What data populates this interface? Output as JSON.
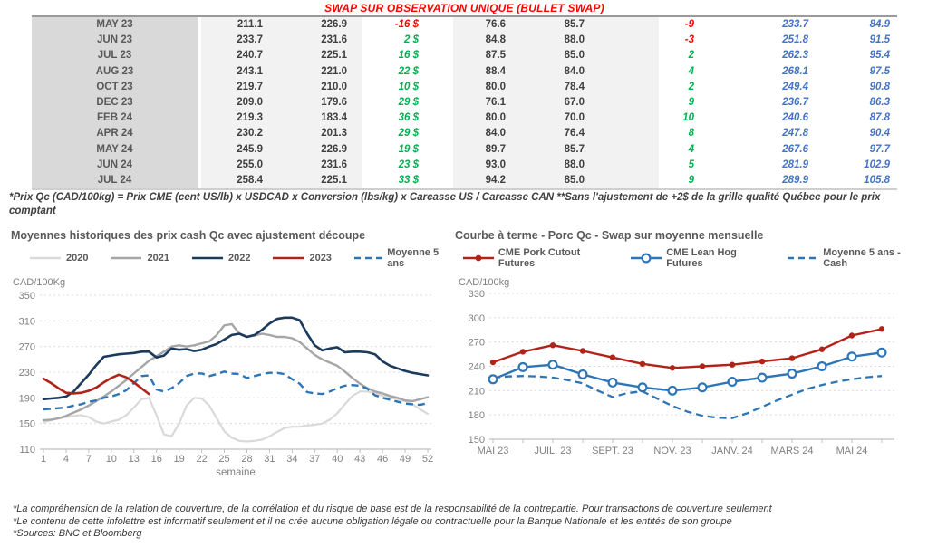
{
  "table": {
    "title": "SWAP SUR OBSERVATION UNIQUE (BULLET SWAP)",
    "footnote": "*Prix Qc (CAD/100kg) = Prix CME (cent US/lb) x USDCAD x Conversion (lbs/kg) x Carcasse US / Carcasse CAN **Sans l'ajustement de +2$ de la grille qualité Québec pour le prix comptant",
    "rows": [
      {
        "month": "MAY 23",
        "v1": "211.1",
        "v2": "226.9",
        "swap": "-16 $",
        "swap_sign": "neg",
        "v3": "76.6",
        "v4": "85.7",
        "diff": "-9",
        "diff_sign": "neg",
        "b1": "233.7",
        "b2": "84.9"
      },
      {
        "month": "JUN 23",
        "v1": "233.7",
        "v2": "231.6",
        "swap": "2 $",
        "swap_sign": "pos",
        "v3": "84.8",
        "v4": "88.0",
        "diff": "-3",
        "diff_sign": "neg",
        "b1": "251.8",
        "b2": "91.5"
      },
      {
        "month": "JUL 23",
        "v1": "240.7",
        "v2": "225.1",
        "swap": "16 $",
        "swap_sign": "pos",
        "v3": "87.5",
        "v4": "85.0",
        "diff": "2",
        "diff_sign": "pos",
        "b1": "262.3",
        "b2": "95.4"
      },
      {
        "month": "AUG 23",
        "v1": "243.1",
        "v2": "221.0",
        "swap": "22 $",
        "swap_sign": "pos",
        "v3": "88.4",
        "v4": "84.0",
        "diff": "4",
        "diff_sign": "pos",
        "b1": "268.1",
        "b2": "97.5"
      },
      {
        "month": "OCT 23",
        "v1": "219.7",
        "v2": "210.0",
        "swap": "10 $",
        "swap_sign": "pos",
        "v3": "80.0",
        "v4": "78.4",
        "diff": "2",
        "diff_sign": "pos",
        "b1": "249.4",
        "b2": "90.8"
      },
      {
        "month": "DEC 23",
        "v1": "209.0",
        "v2": "179.6",
        "swap": "29 $",
        "swap_sign": "pos",
        "v3": "76.1",
        "v4": "67.0",
        "diff": "9",
        "diff_sign": "pos",
        "b1": "236.7",
        "b2": "86.3"
      },
      {
        "month": "FEB 24",
        "v1": "219.3",
        "v2": "183.4",
        "swap": "36 $",
        "swap_sign": "pos",
        "v3": "80.0",
        "v4": "70.0",
        "diff": "10",
        "diff_sign": "pos",
        "b1": "240.6",
        "b2": "87.8"
      },
      {
        "month": "APR 24",
        "v1": "230.2",
        "v2": "201.3",
        "swap": "29 $",
        "swap_sign": "pos",
        "v3": "84.0",
        "v4": "76.4",
        "diff": "8",
        "diff_sign": "pos",
        "b1": "247.8",
        "b2": "90.4"
      },
      {
        "month": "MAY 24",
        "v1": "245.9",
        "v2": "226.9",
        "swap": "19 $",
        "swap_sign": "pos",
        "v3": "89.7",
        "v4": "85.7",
        "diff": "4",
        "diff_sign": "pos",
        "b1": "267.6",
        "b2": "97.7"
      },
      {
        "month": "JUN 24",
        "v1": "255.0",
        "v2": "231.6",
        "swap": "23 $",
        "swap_sign": "pos",
        "v3": "93.0",
        "v4": "88.0",
        "diff": "5",
        "diff_sign": "pos",
        "b1": "281.9",
        "b2": "102.9"
      },
      {
        "month": "JUL 24",
        "v1": "258.4",
        "v2": "225.1",
        "swap": "33 $",
        "swap_sign": "pos",
        "v3": "94.2",
        "v4": "85.0",
        "diff": "9",
        "diff_sign": "pos",
        "b1": "289.9",
        "b2": "105.8"
      }
    ]
  },
  "colors": {
    "positive": "#00b050",
    "negative": "#ff0000",
    "blue_italic": "#4472c4",
    "title_red": "#ff0000",
    "navy": "#1b3a5c",
    "dark_red": "#b02318",
    "steel_blue": "#2e75b6",
    "light_gray": "#d9d9d9",
    "mid_gray": "#a6a6a6"
  },
  "chart_data": [
    {
      "id": "cash-history",
      "type": "line",
      "title": "Moyennes historiques des prix cash Qc avec ajustement découpe",
      "y_unit": "CAD/100Kg",
      "xlabel": "semaine",
      "y_min": 110,
      "y_max": 350,
      "y_step": 40,
      "x_min": 1,
      "x_max": 52,
      "x_ticks": [
        1,
        4,
        7,
        10,
        13,
        16,
        19,
        22,
        25,
        28,
        31,
        34,
        37,
        40,
        43,
        46,
        49,
        52
      ],
      "legend": [
        {
          "label": "2020",
          "color": "#d9d9d9",
          "style": "solid",
          "marker": "none"
        },
        {
          "label": "2021",
          "color": "#a6a6a6",
          "style": "solid",
          "marker": "none"
        },
        {
          "label": "2022",
          "color": "#1b3a5c",
          "style": "solid",
          "marker": "none"
        },
        {
          "label": "2023",
          "color": "#b02318",
          "style": "solid",
          "marker": "none"
        },
        {
          "label": "Moyenne 5 ans",
          "color": "#2e75b6",
          "style": "dash",
          "marker": "none"
        }
      ],
      "series": [
        {
          "name": "2020",
          "color": "#d9d9d9",
          "width": 2.2,
          "style": "solid",
          "marker": "none",
          "x_start": 1,
          "values": [
            152,
            155,
            158,
            160,
            162,
            163,
            160,
            153,
            150,
            153,
            156,
            163,
            175,
            188,
            190,
            163,
            133,
            130,
            150,
            178,
            190,
            189,
            178,
            158,
            138,
            128,
            123,
            122,
            123,
            125,
            130,
            137,
            143,
            145,
            145,
            147,
            148,
            150,
            156,
            166,
            180,
            193,
            200,
            200,
            197,
            193,
            190,
            188,
            185,
            180,
            172,
            165
          ]
        },
        {
          "name": "2021",
          "color": "#a6a6a6",
          "width": 2.4,
          "style": "solid",
          "marker": "none",
          "x_start": 1,
          "values": [
            155,
            156,
            158,
            162,
            167,
            172,
            178,
            185,
            192,
            200,
            209,
            218,
            228,
            238,
            248,
            255,
            262,
            270,
            272,
            270,
            272,
            275,
            278,
            288,
            303,
            305,
            290,
            285,
            287,
            290,
            288,
            285,
            285,
            283,
            277,
            267,
            257,
            250,
            245,
            240,
            231,
            221,
            212,
            205,
            200,
            197,
            193,
            190,
            186,
            185,
            188,
            191
          ]
        },
        {
          "name": "Moyenne 5 ans",
          "color": "#2e75b6",
          "width": 2.4,
          "style": "dash",
          "marker": "none",
          "x_start": 1,
          "values": [
            172,
            173,
            174,
            175,
            178,
            180,
            184,
            186,
            190,
            192,
            196,
            202,
            213,
            224,
            225,
            203,
            200,
            205,
            213,
            224,
            228,
            228,
            224,
            227,
            231,
            228,
            227,
            221,
            224,
            227,
            229,
            229,
            227,
            219,
            212,
            199,
            197,
            196,
            200,
            205,
            209,
            210,
            209,
            204,
            194,
            190,
            187,
            184,
            181,
            180,
            179,
            182
          ]
        },
        {
          "name": "2022",
          "color": "#1b3a5c",
          "width": 2.6,
          "style": "solid",
          "marker": "none",
          "x_start": 1,
          "values": [
            188,
            189,
            190,
            192,
            200,
            213,
            226,
            241,
            254,
            256,
            258,
            259,
            260,
            262,
            262,
            253,
            256,
            267,
            265,
            266,
            263,
            265,
            270,
            274,
            281,
            288,
            290,
            285,
            288,
            296,
            306,
            313,
            315,
            315,
            311,
            290,
            272,
            264,
            267,
            269,
            261,
            262,
            262,
            261,
            258,
            247,
            240,
            236,
            232,
            229,
            227,
            225
          ]
        },
        {
          "name": "2023",
          "color": "#b02318",
          "width": 2.6,
          "style": "solid",
          "marker": "none",
          "x_start": 1,
          "values": [
            220,
            213,
            205,
            198,
            197,
            198,
            201,
            206,
            214,
            221,
            226,
            222,
            214,
            205,
            196
          ]
        }
      ]
    },
    {
      "id": "forward-curve",
      "type": "line",
      "title": "Courbe à terme - Porc Qc - Swap sur moyenne mensuelle",
      "y_unit": "CAD/100kg",
      "xlabel": "",
      "y_min": 150,
      "y_max": 330,
      "y_step": 30,
      "x_min": 0,
      "x_max": 13,
      "x_ticks": [
        {
          "x": 0,
          "label": "MAI 23"
        },
        {
          "x": 2,
          "label": "JUIL. 23"
        },
        {
          "x": 4,
          "label": "SEPT. 23"
        },
        {
          "x": 6,
          "label": "NOV. 23"
        },
        {
          "x": 8,
          "label": "JANV. 24"
        },
        {
          "x": 10,
          "label": "MARS 24"
        },
        {
          "x": 12,
          "label": "MAI 24"
        }
      ],
      "x_minor_ticks": [
        0,
        1,
        2,
        3,
        4,
        5,
        6,
        7,
        8,
        9,
        10,
        11,
        12,
        13
      ],
      "legend": [
        {
          "label": "CME Pork Cutout Futures",
          "color": "#b02318",
          "style": "solid",
          "marker": "dot"
        },
        {
          "label": "CME Lean Hog Futures",
          "color": "#2e75b6",
          "style": "solid",
          "marker": "circle"
        },
        {
          "label": "Moyenne 5 ans - Cash",
          "color": "#2e75b6",
          "style": "dash",
          "marker": "none"
        }
      ],
      "series": [
        {
          "name": "Moyenne 5 ans - Cash",
          "color": "#2e75b6",
          "width": 2.3,
          "style": "dash",
          "marker": "none",
          "x": [
            0,
            0.5,
            1,
            1.5,
            2,
            2.5,
            3,
            3.5,
            4,
            4.5,
            5,
            5.5,
            6,
            6.5,
            7,
            7.5,
            8,
            8.5,
            9,
            9.5,
            10,
            10.5,
            11,
            11.5,
            12,
            12.5,
            13
          ],
          "values": [
            226,
            227.5,
            228,
            227.5,
            226,
            223,
            219,
            210,
            202,
            207,
            209,
            200,
            191,
            184,
            179,
            176.5,
            176,
            182,
            190,
            198,
            205,
            212,
            217,
            221,
            224,
            226.5,
            228
          ]
        },
        {
          "name": "CME Lean Hog Futures",
          "color": "#2e75b6",
          "width": 2.4,
          "style": "solid",
          "marker": "circle",
          "x_start": 0,
          "values": [
            224,
            239,
            242,
            230,
            220,
            214,
            210,
            214,
            221,
            226,
            231,
            240,
            252,
            257
          ]
        },
        {
          "name": "CME Pork Cutout Futures",
          "color": "#b02318",
          "width": 2.4,
          "style": "solid",
          "marker": "dot",
          "x_start": 0,
          "values": [
            245,
            258,
            266,
            259,
            251,
            243,
            238,
            240,
            242,
            246,
            250,
            261,
            278,
            286
          ]
        }
      ]
    }
  ],
  "notes": [
    "*La compréhension de la relation de couverture, de la corrélation et du risque de base est de la responsabilité de la contrepartie. Pour transactions de couverture seulement",
    "*Le contenu de cette infolettre est informatif seulement et il ne crée aucune obligation légale ou contractuelle pour la Banque Nationale et les entités de son groupe",
    "*Sources: BNC et Bloomberg"
  ]
}
